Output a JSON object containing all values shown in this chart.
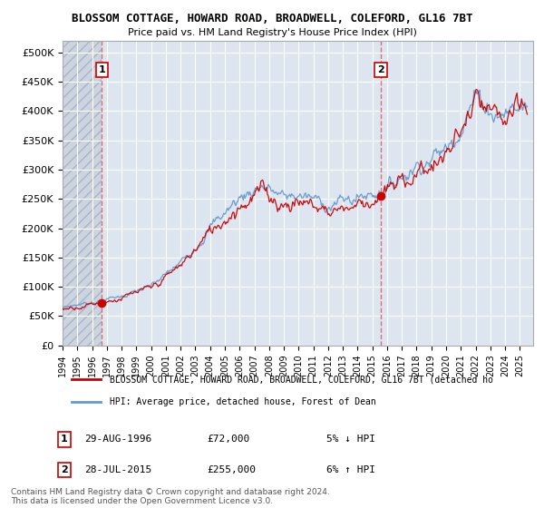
{
  "title": "BLOSSOM COTTAGE, HOWARD ROAD, BROADWELL, COLEFORD, GL16 7BT",
  "subtitle": "Price paid vs. HM Land Registry's House Price Index (HPI)",
  "xlim_start": 1994.0,
  "xlim_end": 2025.9,
  "ylim": [
    0,
    520000
  ],
  "yticks": [
    0,
    50000,
    100000,
    150000,
    200000,
    250000,
    300000,
    350000,
    400000,
    450000,
    500000
  ],
  "ytick_labels": [
    "£0",
    "£50K",
    "£100K",
    "£150K",
    "£200K",
    "£250K",
    "£300K",
    "£350K",
    "£400K",
    "£450K",
    "£500K"
  ],
  "sale1_year": 1996.67,
  "sale1_price": 72000,
  "sale1_label": "1",
  "sale1_date": "29-AUG-1996",
  "sale1_pct": "5% ↓ HPI",
  "sale2_year": 2015.57,
  "sale2_price": 255000,
  "sale2_label": "2",
  "sale2_date": "28-JUL-2015",
  "sale2_pct": "6% ↑ HPI",
  "property_color": "#cc0000",
  "hpi_color": "#6699cc",
  "vline_color": "#e06060",
  "hatch_color": "#d0d8e8",
  "mid_bg_color": "#e8eef5",
  "right_bg_color": "#e8eef5",
  "legend_property": "BLOSSOM COTTAGE, HOWARD ROAD, BROADWELL, COLEFORD, GL16 7BT (detached ho",
  "legend_hpi": "HPI: Average price, detached house, Forest of Dean",
  "footnote": "Contains HM Land Registry data © Crown copyright and database right 2024.\nThis data is licensed under the Open Government Licence v3.0.",
  "xtick_years": [
    1994,
    1995,
    1996,
    1997,
    1998,
    1999,
    2000,
    2001,
    2002,
    2003,
    2004,
    2005,
    2006,
    2007,
    2008,
    2009,
    2010,
    2011,
    2012,
    2013,
    2014,
    2015,
    2016,
    2017,
    2018,
    2019,
    2020,
    2021,
    2022,
    2023,
    2024,
    2025
  ]
}
